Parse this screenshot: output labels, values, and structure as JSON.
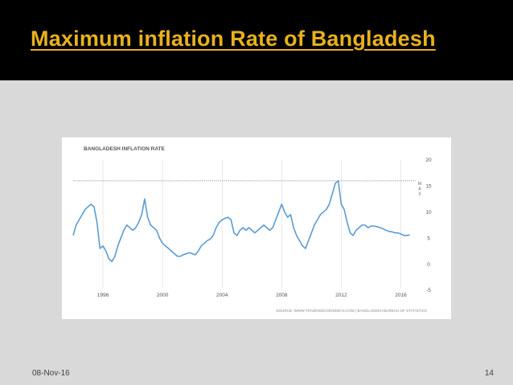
{
  "slide": {
    "title": "Maximum inflation Rate of Bangladesh",
    "date": "08-Nov-16",
    "page_number": "14"
  },
  "colors": {
    "header_bg": "#000000",
    "title": "#e8b21c",
    "background": "#d9d9d9",
    "line": "#5b9bd5"
  },
  "chart_data": {
    "type": "line",
    "title": "BANGLADESH INFLATION RATE",
    "source": "SOURCE: WWW.TRADINGECONOMICS.COM | BANGLADESH BUREAU OF STATISTICS",
    "max_marker_label": "MAX",
    "max_value": 16,
    "xlabel": "",
    "ylabel": "",
    "xlim": [
      1994,
      2017
    ],
    "ylim": [
      -5,
      20
    ],
    "x_ticks": [
      1996,
      2000,
      2004,
      2008,
      2012,
      2016
    ],
    "y_ticks": [
      20,
      15,
      10,
      5,
      0,
      -5
    ],
    "grid": "vertical gridlines at x ticks",
    "series": [
      {
        "name": "Inflation Rate",
        "x": [
          1994.0,
          1994.2,
          1994.4,
          1994.6,
          1994.8,
          1995.0,
          1995.2,
          1995.4,
          1995.6,
          1995.8,
          1996.0,
          1996.2,
          1996.4,
          1996.6,
          1996.8,
          1997.0,
          1997.2,
          1997.4,
          1997.6,
          1997.8,
          1998.0,
          1998.2,
          1998.4,
          1998.6,
          1998.8,
          1999.0,
          1999.2,
          1999.4,
          1999.6,
          1999.8,
          2000.0,
          2000.2,
          2000.4,
          2000.6,
          2000.8,
          2001.0,
          2001.2,
          2001.4,
          2001.6,
          2001.8,
          2002.0,
          2002.2,
          2002.4,
          2002.6,
          2002.8,
          2003.0,
          2003.2,
          2003.4,
          2003.6,
          2003.8,
          2004.0,
          2004.2,
          2004.4,
          2004.6,
          2004.8,
          2005.0,
          2005.2,
          2005.4,
          2005.6,
          2005.8,
          2006.0,
          2006.2,
          2006.4,
          2006.6,
          2006.8,
          2007.0,
          2007.2,
          2007.4,
          2007.6,
          2007.8,
          2008.0,
          2008.2,
          2008.4,
          2008.6,
          2008.8,
          2009.0,
          2009.2,
          2009.4,
          2009.6,
          2009.8,
          2010.0,
          2010.2,
          2010.4,
          2010.6,
          2010.8,
          2011.0,
          2011.2,
          2011.4,
          2011.6,
          2011.8,
          2012.0,
          2012.2,
          2012.4,
          2012.6,
          2012.8,
          2013.0,
          2013.2,
          2013.4,
          2013.6,
          2013.8,
          2014.0,
          2014.2,
          2014.4,
          2014.6,
          2014.8,
          2015.0,
          2015.2,
          2015.4,
          2015.6,
          2015.8,
          2016.0,
          2016.2,
          2016.4,
          2016.6
        ],
        "values": [
          5.5,
          7.5,
          8.5,
          9.5,
          10.5,
          11.0,
          11.5,
          11.0,
          8.0,
          3.0,
          3.5,
          2.5,
          1.0,
          0.5,
          1.5,
          3.5,
          5.0,
          6.5,
          7.5,
          7.0,
          6.5,
          7.0,
          8.0,
          9.5,
          12.5,
          9.0,
          7.5,
          7.0,
          6.5,
          5.0,
          4.0,
          3.5,
          3.0,
          2.5,
          2.0,
          1.5,
          1.5,
          1.8,
          2.0,
          2.2,
          2.0,
          1.8,
          2.5,
          3.5,
          4.0,
          4.5,
          4.8,
          5.5,
          7.0,
          8.0,
          8.5,
          8.8,
          9.0,
          8.5,
          6.0,
          5.5,
          6.5,
          7.0,
          6.5,
          7.0,
          6.5,
          6.0,
          6.5,
          7.0,
          7.5,
          7.0,
          6.5,
          7.0,
          8.5,
          10.0,
          11.5,
          10.0,
          9.0,
          9.5,
          7.0,
          5.5,
          4.5,
          3.5,
          3.0,
          4.5,
          6.0,
          7.5,
          8.5,
          9.5,
          10.0,
          10.5,
          11.5,
          13.5,
          15.5,
          16.0,
          11.5,
          10.5,
          8.0,
          6.0,
          5.5,
          6.5,
          7.0,
          7.5,
          7.5,
          7.0,
          7.3,
          7.3,
          7.2,
          7.0,
          6.8,
          6.5,
          6.3,
          6.2,
          6.0,
          6.0,
          5.8,
          5.5,
          5.5,
          5.6
        ]
      }
    ]
  }
}
